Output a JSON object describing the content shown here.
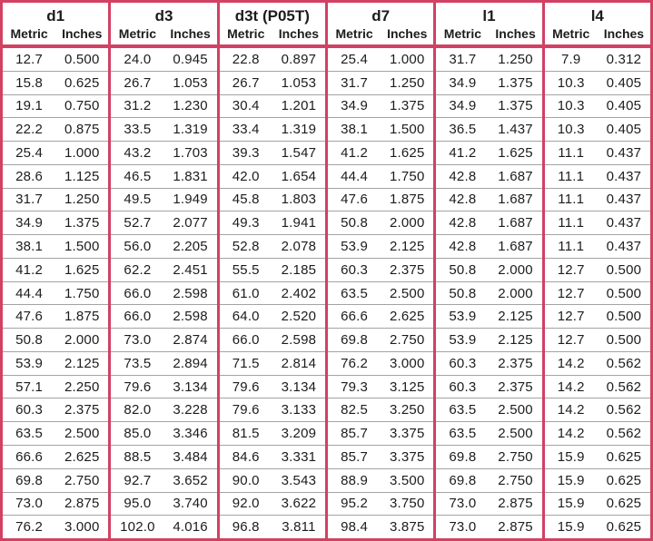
{
  "colors": {
    "border_red": "#d24162",
    "row_separator": "#a3a3a3",
    "text": "#1c1c1c",
    "background": "#ffffff"
  },
  "table": {
    "subheaders": [
      "Metric",
      "Inches"
    ],
    "groups": [
      {
        "label": "d1",
        "rows": [
          [
            "12.7",
            "0.500"
          ],
          [
            "15.8",
            "0.625"
          ],
          [
            "19.1",
            "0.750"
          ],
          [
            "22.2",
            "0.875"
          ],
          [
            "25.4",
            "1.000"
          ],
          [
            "28.6",
            "1.125"
          ],
          [
            "31.7",
            "1.250"
          ],
          [
            "34.9",
            "1.375"
          ],
          [
            "38.1",
            "1.500"
          ],
          [
            "41.2",
            "1.625"
          ],
          [
            "44.4",
            "1.750"
          ],
          [
            "47.6",
            "1.875"
          ],
          [
            "50.8",
            "2.000"
          ],
          [
            "53.9",
            "2.125"
          ],
          [
            "57.1",
            "2.250"
          ],
          [
            "60.3",
            "2.375"
          ],
          [
            "63.5",
            "2.500"
          ],
          [
            "66.6",
            "2.625"
          ],
          [
            "69.8",
            "2.750"
          ],
          [
            "73.0",
            "2.875"
          ],
          [
            "76.2",
            "3.000"
          ]
        ]
      },
      {
        "label": "d3",
        "rows": [
          [
            "24.0",
            "0.945"
          ],
          [
            "26.7",
            "1.053"
          ],
          [
            "31.2",
            "1.230"
          ],
          [
            "33.5",
            "1.319"
          ],
          [
            "43.2",
            "1.703"
          ],
          [
            "46.5",
            "1.831"
          ],
          [
            "49.5",
            "1.949"
          ],
          [
            "52.7",
            "2.077"
          ],
          [
            "56.0",
            "2.205"
          ],
          [
            "62.2",
            "2.451"
          ],
          [
            "66.0",
            "2.598"
          ],
          [
            "66.0",
            "2.598"
          ],
          [
            "73.0",
            "2.874"
          ],
          [
            "73.5",
            "2.894"
          ],
          [
            "79.6",
            "3.134"
          ],
          [
            "82.0",
            "3.228"
          ],
          [
            "85.0",
            "3.346"
          ],
          [
            "88.5",
            "3.484"
          ],
          [
            "92.7",
            "3.652"
          ],
          [
            "95.0",
            "3.740"
          ],
          [
            "102.0",
            "4.016"
          ]
        ]
      },
      {
        "label": "d3t (P05T)",
        "rows": [
          [
            "22.8",
            "0.897"
          ],
          [
            "26.7",
            "1.053"
          ],
          [
            "30.4",
            "1.201"
          ],
          [
            "33.4",
            "1.319"
          ],
          [
            "39.3",
            "1.547"
          ],
          [
            "42.0",
            "1.654"
          ],
          [
            "45.8",
            "1.803"
          ],
          [
            "49.3",
            "1.941"
          ],
          [
            "52.8",
            "2.078"
          ],
          [
            "55.5",
            "2.185"
          ],
          [
            "61.0",
            "2.402"
          ],
          [
            "64.0",
            "2.520"
          ],
          [
            "66.0",
            "2.598"
          ],
          [
            "71.5",
            "2.814"
          ],
          [
            "79.6",
            "3.134"
          ],
          [
            "79.6",
            "3.133"
          ],
          [
            "81.5",
            "3.209"
          ],
          [
            "84.6",
            "3.331"
          ],
          [
            "90.0",
            "3.543"
          ],
          [
            "92.0",
            "3.622"
          ],
          [
            "96.8",
            "3.811"
          ]
        ]
      },
      {
        "label": "d7",
        "rows": [
          [
            "25.4",
            "1.000"
          ],
          [
            "31.7",
            "1.250"
          ],
          [
            "34.9",
            "1.375"
          ],
          [
            "38.1",
            "1.500"
          ],
          [
            "41.2",
            "1.625"
          ],
          [
            "44.4",
            "1.750"
          ],
          [
            "47.6",
            "1.875"
          ],
          [
            "50.8",
            "2.000"
          ],
          [
            "53.9",
            "2.125"
          ],
          [
            "60.3",
            "2.375"
          ],
          [
            "63.5",
            "2.500"
          ],
          [
            "66.6",
            "2.625"
          ],
          [
            "69.8",
            "2.750"
          ],
          [
            "76.2",
            "3.000"
          ],
          [
            "79.3",
            "3.125"
          ],
          [
            "82.5",
            "3.250"
          ],
          [
            "85.7",
            "3.375"
          ],
          [
            "85.7",
            "3.375"
          ],
          [
            "88.9",
            "3.500"
          ],
          [
            "95.2",
            "3.750"
          ],
          [
            "98.4",
            "3.875"
          ]
        ]
      },
      {
        "label": "l1",
        "rows": [
          [
            "31.7",
            "1.250"
          ],
          [
            "34.9",
            "1.375"
          ],
          [
            "34.9",
            "1.375"
          ],
          [
            "36.5",
            "1.437"
          ],
          [
            "41.2",
            "1.625"
          ],
          [
            "42.8",
            "1.687"
          ],
          [
            "42.8",
            "1.687"
          ],
          [
            "42.8",
            "1.687"
          ],
          [
            "42.8",
            "1.687"
          ],
          [
            "50.8",
            "2.000"
          ],
          [
            "50.8",
            "2.000"
          ],
          [
            "53.9",
            "2.125"
          ],
          [
            "53.9",
            "2.125"
          ],
          [
            "60.3",
            "2.375"
          ],
          [
            "60.3",
            "2.375"
          ],
          [
            "63.5",
            "2.500"
          ],
          [
            "63.5",
            "2.500"
          ],
          [
            "69.8",
            "2.750"
          ],
          [
            "69.8",
            "2.750"
          ],
          [
            "73.0",
            "2.875"
          ],
          [
            "73.0",
            "2.875"
          ]
        ]
      },
      {
        "label": "l4",
        "rows": [
          [
            "7.9",
            "0.312"
          ],
          [
            "10.3",
            "0.405"
          ],
          [
            "10.3",
            "0.405"
          ],
          [
            "10.3",
            "0.405"
          ],
          [
            "11.1",
            "0.437"
          ],
          [
            "11.1",
            "0.437"
          ],
          [
            "11.1",
            "0.437"
          ],
          [
            "11.1",
            "0.437"
          ],
          [
            "11.1",
            "0.437"
          ],
          [
            "12.7",
            "0.500"
          ],
          [
            "12.7",
            "0.500"
          ],
          [
            "12.7",
            "0.500"
          ],
          [
            "12.7",
            "0.500"
          ],
          [
            "14.2",
            "0.562"
          ],
          [
            "14.2",
            "0.562"
          ],
          [
            "14.2",
            "0.562"
          ],
          [
            "14.2",
            "0.562"
          ],
          [
            "15.9",
            "0.625"
          ],
          [
            "15.9",
            "0.625"
          ],
          [
            "15.9",
            "0.625"
          ],
          [
            "15.9",
            "0.625"
          ]
        ]
      }
    ]
  }
}
